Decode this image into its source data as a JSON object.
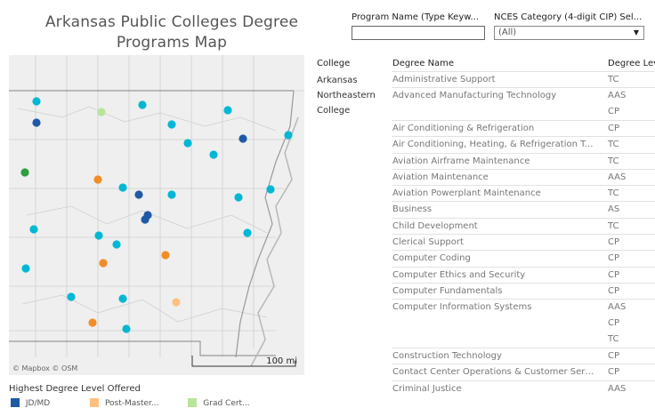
{
  "title": "Arkansas Public Colleges Degree Programs Map",
  "filters": {
    "program_name_label": "Program Name (Type Keyw...",
    "program_name_value": "",
    "nces_label": "NCES Category (4-digit CIP) Sel...",
    "nces_value": "(All)"
  },
  "map": {
    "credit": "© Mapbox  © OSM",
    "scale": "100 mi",
    "points": [
      {
        "color": "#00b8d4"
      },
      {
        "color": "#1f5aa6"
      },
      {
        "color": "#b8e59a"
      },
      {
        "color": "#00b8d4"
      },
      {
        "color": "#00b8d4"
      },
      {
        "color": "#00b8d4"
      },
      {
        "color": "#1f5aa6"
      },
      {
        "color": "#00b8d4"
      },
      {
        "color": "#00b8d4"
      },
      {
        "color": "#00b8d4"
      },
      {
        "color": "#2e9e3e"
      },
      {
        "color": "#f28c28"
      },
      {
        "color": "#00b8d4"
      },
      {
        "color": "#1f5aa6"
      },
      {
        "color": "#00b8d4"
      },
      {
        "color": "#00b8d4"
      },
      {
        "color": "#00b8d4"
      },
      {
        "color": "#1f5aa6"
      },
      {
        "color": "#1f5aa6"
      },
      {
        "color": "#00b8d4"
      },
      {
        "color": "#00b8d4"
      },
      {
        "color": "#00b8d4"
      },
      {
        "color": "#00b8d4"
      },
      {
        "color": "#f28c28"
      },
      {
        "color": "#f28c28"
      },
      {
        "color": "#00b8d4"
      },
      {
        "color": "#00b8d4"
      },
      {
        "color": "#00b8d4"
      },
      {
        "color": "#ffc080"
      },
      {
        "color": "#f28c28"
      },
      {
        "color": "#00b8d4"
      }
    ]
  },
  "legend": {
    "title": "Highest Degree Level Offered",
    "items": [
      {
        "label": "JD/MD",
        "color": "#1f5aa6"
      },
      {
        "label": "Post-Master...",
        "color": "#ffc080"
      },
      {
        "label": "Grad Cert...",
        "color": "#b8e59a"
      }
    ]
  },
  "table": {
    "headers": {
      "college": "College",
      "degree": "Degree Name",
      "level": "Degree Level"
    },
    "college": "Arkansas Northeastern College",
    "rows": [
      {
        "degree": "Administrative Support",
        "level": "TC"
      },
      {
        "degree": "Advanced Manufacturing Technology",
        "level": "AAS"
      },
      {
        "degree": "",
        "level": "CP"
      },
      {
        "degree": "Air Conditioning & Refrigeration",
        "level": "CP"
      },
      {
        "degree": "Air Conditioning, Heating, & Refrigeration Technology",
        "level": "TC"
      },
      {
        "degree": "Aviation Airframe Maintenance",
        "level": "TC"
      },
      {
        "degree": "Aviation Maintenance",
        "level": "AAS"
      },
      {
        "degree": "Aviation Powerplant Maintenance",
        "level": "TC"
      },
      {
        "degree": "Business",
        "level": "AS"
      },
      {
        "degree": "Child Development",
        "level": "TC"
      },
      {
        "degree": "Clerical Support",
        "level": "CP"
      },
      {
        "degree": "Computer Coding",
        "level": "CP"
      },
      {
        "degree": "Computer Ethics and Security",
        "level": "CP"
      },
      {
        "degree": "Computer Fundamentals",
        "level": "CP"
      },
      {
        "degree": "Computer Information Systems",
        "level": "AAS"
      },
      {
        "degree": "",
        "level": "CP"
      },
      {
        "degree": "",
        "level": "TC"
      },
      {
        "degree": "Construction Technology",
        "level": "CP"
      },
      {
        "degree": "Contact Center Operations & Customer Service",
        "level": "CP"
      },
      {
        "degree": "Criminal Justice",
        "level": "AAS"
      }
    ]
  }
}
